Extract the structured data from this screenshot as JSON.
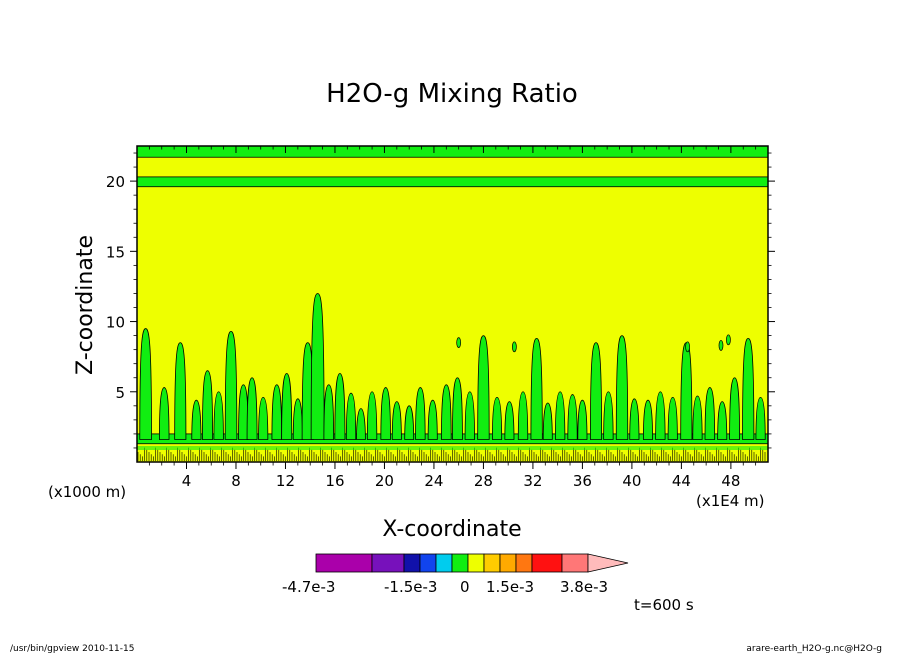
{
  "chart_data": {
    "type": "heatmap",
    "title": "H2O-g Mixing Ratio",
    "xlabel": "X-coordinate",
    "ylabel": "Z-coordinate",
    "x_unit_left": "(x1000 m)",
    "x_unit_right": "(x1E4 m)",
    "xlim": [
      0,
      51
    ],
    "ylim": [
      0,
      22.5
    ],
    "x_ticks": [
      "4",
      "8",
      "12",
      "16",
      "20",
      "24",
      "28",
      "32",
      "36",
      "40",
      "44",
      "48"
    ],
    "y_ticks": [
      "5",
      "10",
      "15",
      "20"
    ],
    "x_tick_values": [
      4,
      8,
      12,
      16,
      20,
      24,
      28,
      32,
      36,
      40,
      44,
      48
    ],
    "y_tick_values": [
      5,
      10,
      15,
      20
    ],
    "background_level_color": "#eeff00",
    "bands": [
      {
        "z_from": 21.7,
        "z_to": 22.5,
        "color": "#11ee11"
      },
      {
        "z_from": 19.6,
        "z_to": 20.3,
        "color": "#11ee11"
      },
      {
        "z_from": 1.3,
        "z_to": 2.0,
        "color": "#11ee11"
      }
    ],
    "plumes": [
      {
        "x": 0.7,
        "top": 9.5
      },
      {
        "x": 2.2,
        "top": 5.3
      },
      {
        "x": 3.5,
        "top": 8.5
      },
      {
        "x": 4.8,
        "top": 4.4
      },
      {
        "x": 5.7,
        "top": 6.5
      },
      {
        "x": 6.6,
        "top": 5.0
      },
      {
        "x": 7.6,
        "top": 9.3
      },
      {
        "x": 8.6,
        "top": 5.5
      },
      {
        "x": 9.3,
        "top": 6.0
      },
      {
        "x": 10.2,
        "top": 4.6
      },
      {
        "x": 11.3,
        "top": 5.5
      },
      {
        "x": 12.1,
        "top": 6.3
      },
      {
        "x": 13.0,
        "top": 4.5
      },
      {
        "x": 13.8,
        "top": 8.5
      },
      {
        "x": 14.6,
        "top": 12.0
      },
      {
        "x": 15.5,
        "top": 5.5
      },
      {
        "x": 16.4,
        "top": 6.3
      },
      {
        "x": 17.3,
        "top": 4.9
      },
      {
        "x": 18.1,
        "top": 3.8
      },
      {
        "x": 19.0,
        "top": 5.0
      },
      {
        "x": 20.1,
        "top": 5.3
      },
      {
        "x": 21.0,
        "top": 4.3
      },
      {
        "x": 22.0,
        "top": 4.0
      },
      {
        "x": 22.9,
        "top": 5.3
      },
      {
        "x": 23.9,
        "top": 4.4
      },
      {
        "x": 25.0,
        "top": 5.5
      },
      {
        "x": 25.9,
        "top": 6.0
      },
      {
        "x": 26.9,
        "top": 5.0
      },
      {
        "x": 28.0,
        "top": 9.0
      },
      {
        "x": 29.1,
        "top": 4.6
      },
      {
        "x": 30.1,
        "top": 4.3
      },
      {
        "x": 31.2,
        "top": 5.0
      },
      {
        "x": 32.3,
        "top": 8.8
      },
      {
        "x": 33.2,
        "top": 4.2
      },
      {
        "x": 34.2,
        "top": 5.0
      },
      {
        "x": 35.2,
        "top": 4.8
      },
      {
        "x": 36.0,
        "top": 4.4
      },
      {
        "x": 37.1,
        "top": 8.5
      },
      {
        "x": 38.1,
        "top": 5.0
      },
      {
        "x": 39.2,
        "top": 9.0
      },
      {
        "x": 40.2,
        "top": 4.5
      },
      {
        "x": 41.3,
        "top": 4.4
      },
      {
        "x": 42.3,
        "top": 5.0
      },
      {
        "x": 43.3,
        "top": 4.6
      },
      {
        "x": 44.4,
        "top": 8.5
      },
      {
        "x": 45.3,
        "top": 4.7
      },
      {
        "x": 46.3,
        "top": 5.3
      },
      {
        "x": 47.3,
        "top": 4.3
      },
      {
        "x": 48.3,
        "top": 6.0
      },
      {
        "x": 49.4,
        "top": 8.8
      },
      {
        "x": 50.4,
        "top": 4.6
      }
    ],
    "dots": [
      {
        "x": 26.0,
        "z": 8.5
      },
      {
        "x": 30.5,
        "z": 8.2
      },
      {
        "x": 44.5,
        "z": 8.2
      },
      {
        "x": 47.2,
        "z": 8.3
      },
      {
        "x": 47.8,
        "z": 8.7
      }
    ],
    "colorbar": {
      "colors": [
        "#aa00aa",
        "#7711bb",
        "#1111aa",
        "#1144ee",
        "#00ccee",
        "#11ee11",
        "#eeff00",
        "#ffcc00",
        "#ffaa00",
        "#ff7711",
        "#ff1111",
        "#ff7777",
        "#ffbbbb"
      ],
      "labels": [
        "-4.7e-3",
        "-1.5e-3",
        "0",
        "1.5e-3",
        "3.8e-3"
      ]
    },
    "time_label": "t=600 s"
  },
  "footer": {
    "left": "/usr/bin/gpview  2010-11-15",
    "right": "arare-earth_H2O-g.nc@H2O-g"
  }
}
